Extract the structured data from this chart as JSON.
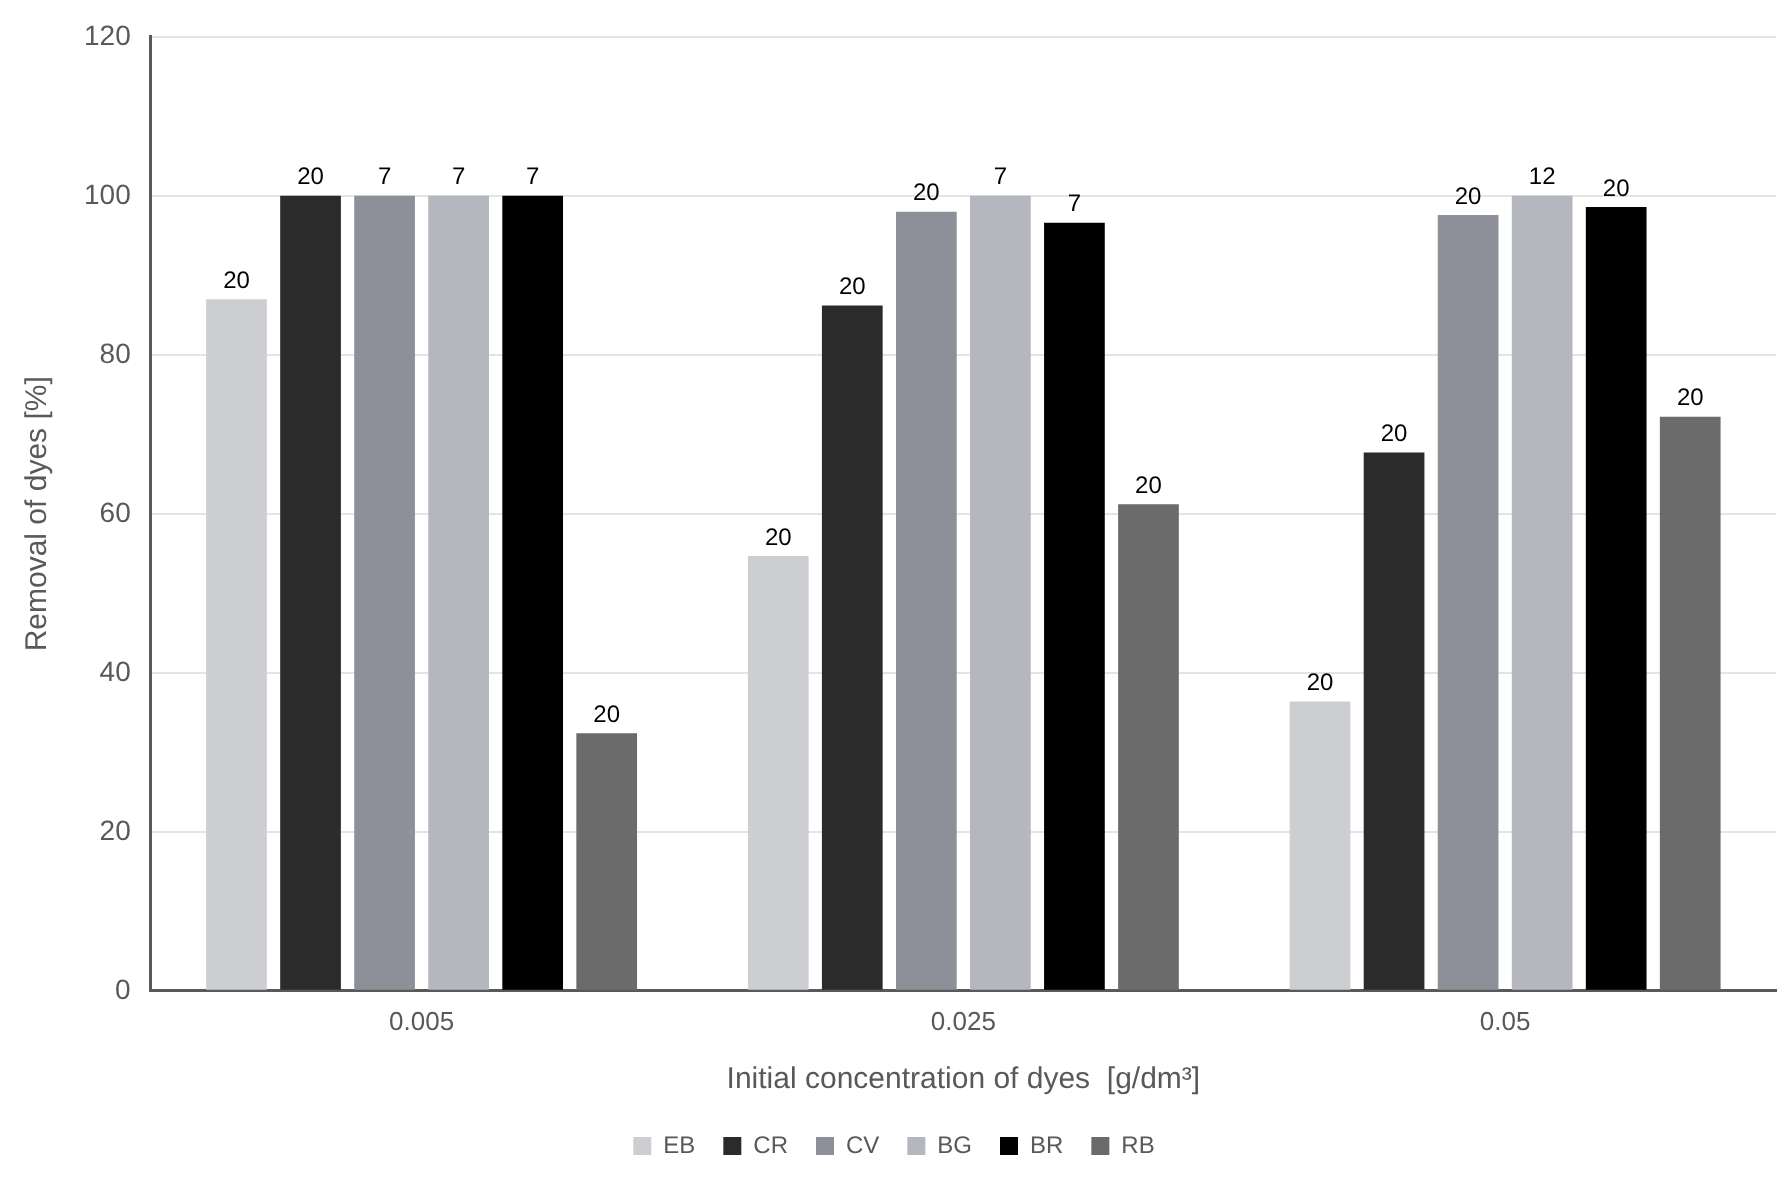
{
  "chart_data": {
    "type": "bar",
    "xlabel": "Initial concentration of dyes  [g/dm³]",
    "ylabel": "Removal of dyes [%]",
    "categories": [
      "0.005",
      "0.025",
      "0.05"
    ],
    "series": [
      {
        "name": "EB",
        "color": "#ccced2",
        "values": [
          87,
          54.7,
          36.4
        ]
      },
      {
        "name": "CR",
        "color": "#2b2b2b",
        "values": [
          100,
          86.2,
          67.7
        ]
      },
      {
        "name": "CV",
        "color": "#8e9099",
        "values": [
          100,
          98,
          97.6
        ]
      },
      {
        "name": "BG",
        "color": "#b4b7be",
        "values": [
          100,
          100,
          100
        ]
      },
      {
        "name": "BR",
        "color": "#000000",
        "values": [
          100,
          96.6,
          98.6
        ]
      },
      {
        "name": "RB",
        "color": "#6b6b6b",
        "values": [
          32.4,
          61.2,
          72.2
        ]
      }
    ],
    "annotations": [
      "20",
      "20",
      "7",
      "7",
      "7",
      "20",
      "20",
      "20",
      "20",
      "7",
      "7",
      "20",
      "20",
      "20",
      "20",
      "12",
      "20",
      "20"
    ],
    "ylim": [
      0,
      120
    ],
    "yticks": [
      0,
      20,
      40,
      60,
      80,
      100,
      120
    ],
    "grid": "y",
    "legend": "bottom"
  }
}
